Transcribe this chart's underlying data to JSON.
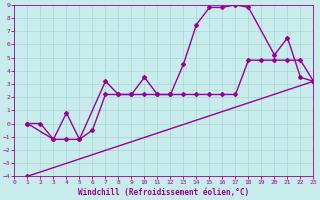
{
  "xlabel": "Windchill (Refroidissement éolien,°C)",
  "bg_color": "#c8ecec",
  "grid_color": "#aad4d4",
  "line_color": "#990099",
  "xlim": [
    0,
    23
  ],
  "ylim": [
    -4,
    9
  ],
  "xticks": [
    0,
    1,
    2,
    3,
    4,
    5,
    6,
    7,
    8,
    9,
    10,
    11,
    12,
    13,
    14,
    15,
    16,
    17,
    18,
    19,
    20,
    21,
    22,
    23
  ],
  "yticks": [
    -4,
    -3,
    -2,
    -1,
    0,
    1,
    2,
    3,
    4,
    5,
    6,
    7,
    8,
    9
  ],
  "curve1_x": [
    1,
    23
  ],
  "curve1_y": [
    -4,
    3.2
  ],
  "curve2_x": [
    1,
    2,
    3,
    4,
    5,
    6,
    7,
    8,
    9,
    10,
    11,
    12,
    13,
    14,
    15,
    16,
    17,
    18,
    19,
    20,
    21,
    22,
    23
  ],
  "curve2_y": [
    0,
    0,
    -1.2,
    -1.2,
    -1.2,
    -0.5,
    2.2,
    2.2,
    2.2,
    2.2,
    2.2,
    2.2,
    2.2,
    2.2,
    2.2,
    2.2,
    2.2,
    4.8,
    4.8,
    4.8,
    4.8,
    4.8,
    3.2
  ],
  "curve3_x": [
    1,
    3,
    4,
    5,
    7,
    8,
    9,
    10,
    11,
    12,
    13,
    14,
    15,
    16,
    17,
    18,
    20,
    21,
    22,
    23
  ],
  "curve3_y": [
    0,
    -1.2,
    0.8,
    -1.2,
    3.2,
    2.2,
    2.2,
    3.5,
    2.2,
    2.2,
    4.5,
    7.5,
    8.8,
    8.8,
    9.0,
    8.8,
    5.2,
    6.5,
    3.5,
    3.2
  ],
  "marker": "D",
  "marker_size": 2,
  "linewidth": 1.0
}
